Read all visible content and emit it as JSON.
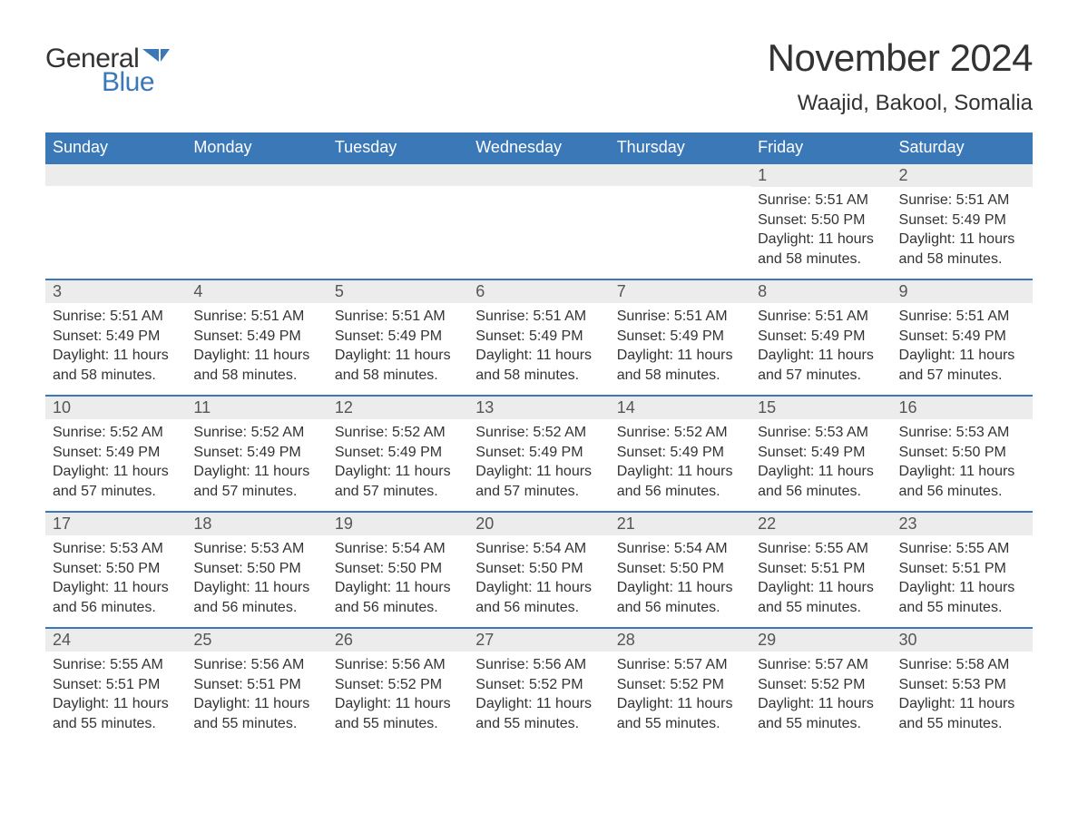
{
  "logo": {
    "text1": "General",
    "text2": "Blue",
    "flag_color": "#3b78b8"
  },
  "title": "November 2024",
  "location": "Waajid, Bakool, Somalia",
  "colors": {
    "header_bg": "#3b78b8",
    "header_fg": "#ffffff",
    "daynum_bg": "#ececec",
    "daynum_border": "#3b78b8",
    "text": "#333333",
    "background": "#ffffff"
  },
  "typography": {
    "title_fontsize": 42,
    "location_fontsize": 24,
    "dayheader_fontsize": 18,
    "daynum_fontsize": 18,
    "body_fontsize": 16
  },
  "day_headers": [
    "Sunday",
    "Monday",
    "Tuesday",
    "Wednesday",
    "Thursday",
    "Friday",
    "Saturday"
  ],
  "weeks": [
    [
      null,
      null,
      null,
      null,
      null,
      {
        "n": "1",
        "sr": "Sunrise: 5:51 AM",
        "ss": "Sunset: 5:50 PM",
        "dl": "Daylight: 11 hours and 58 minutes."
      },
      {
        "n": "2",
        "sr": "Sunrise: 5:51 AM",
        "ss": "Sunset: 5:49 PM",
        "dl": "Daylight: 11 hours and 58 minutes."
      }
    ],
    [
      {
        "n": "3",
        "sr": "Sunrise: 5:51 AM",
        "ss": "Sunset: 5:49 PM",
        "dl": "Daylight: 11 hours and 58 minutes."
      },
      {
        "n": "4",
        "sr": "Sunrise: 5:51 AM",
        "ss": "Sunset: 5:49 PM",
        "dl": "Daylight: 11 hours and 58 minutes."
      },
      {
        "n": "5",
        "sr": "Sunrise: 5:51 AM",
        "ss": "Sunset: 5:49 PM",
        "dl": "Daylight: 11 hours and 58 minutes."
      },
      {
        "n": "6",
        "sr": "Sunrise: 5:51 AM",
        "ss": "Sunset: 5:49 PM",
        "dl": "Daylight: 11 hours and 58 minutes."
      },
      {
        "n": "7",
        "sr": "Sunrise: 5:51 AM",
        "ss": "Sunset: 5:49 PM",
        "dl": "Daylight: 11 hours and 58 minutes."
      },
      {
        "n": "8",
        "sr": "Sunrise: 5:51 AM",
        "ss": "Sunset: 5:49 PM",
        "dl": "Daylight: 11 hours and 57 minutes."
      },
      {
        "n": "9",
        "sr": "Sunrise: 5:51 AM",
        "ss": "Sunset: 5:49 PM",
        "dl": "Daylight: 11 hours and 57 minutes."
      }
    ],
    [
      {
        "n": "10",
        "sr": "Sunrise: 5:52 AM",
        "ss": "Sunset: 5:49 PM",
        "dl": "Daylight: 11 hours and 57 minutes."
      },
      {
        "n": "11",
        "sr": "Sunrise: 5:52 AM",
        "ss": "Sunset: 5:49 PM",
        "dl": "Daylight: 11 hours and 57 minutes."
      },
      {
        "n": "12",
        "sr": "Sunrise: 5:52 AM",
        "ss": "Sunset: 5:49 PM",
        "dl": "Daylight: 11 hours and 57 minutes."
      },
      {
        "n": "13",
        "sr": "Sunrise: 5:52 AM",
        "ss": "Sunset: 5:49 PM",
        "dl": "Daylight: 11 hours and 57 minutes."
      },
      {
        "n": "14",
        "sr": "Sunrise: 5:52 AM",
        "ss": "Sunset: 5:49 PM",
        "dl": "Daylight: 11 hours and 56 minutes."
      },
      {
        "n": "15",
        "sr": "Sunrise: 5:53 AM",
        "ss": "Sunset: 5:49 PM",
        "dl": "Daylight: 11 hours and 56 minutes."
      },
      {
        "n": "16",
        "sr": "Sunrise: 5:53 AM",
        "ss": "Sunset: 5:50 PM",
        "dl": "Daylight: 11 hours and 56 minutes."
      }
    ],
    [
      {
        "n": "17",
        "sr": "Sunrise: 5:53 AM",
        "ss": "Sunset: 5:50 PM",
        "dl": "Daylight: 11 hours and 56 minutes."
      },
      {
        "n": "18",
        "sr": "Sunrise: 5:53 AM",
        "ss": "Sunset: 5:50 PM",
        "dl": "Daylight: 11 hours and 56 minutes."
      },
      {
        "n": "19",
        "sr": "Sunrise: 5:54 AM",
        "ss": "Sunset: 5:50 PM",
        "dl": "Daylight: 11 hours and 56 minutes."
      },
      {
        "n": "20",
        "sr": "Sunrise: 5:54 AM",
        "ss": "Sunset: 5:50 PM",
        "dl": "Daylight: 11 hours and 56 minutes."
      },
      {
        "n": "21",
        "sr": "Sunrise: 5:54 AM",
        "ss": "Sunset: 5:50 PM",
        "dl": "Daylight: 11 hours and 56 minutes."
      },
      {
        "n": "22",
        "sr": "Sunrise: 5:55 AM",
        "ss": "Sunset: 5:51 PM",
        "dl": "Daylight: 11 hours and 55 minutes."
      },
      {
        "n": "23",
        "sr": "Sunrise: 5:55 AM",
        "ss": "Sunset: 5:51 PM",
        "dl": "Daylight: 11 hours and 55 minutes."
      }
    ],
    [
      {
        "n": "24",
        "sr": "Sunrise: 5:55 AM",
        "ss": "Sunset: 5:51 PM",
        "dl": "Daylight: 11 hours and 55 minutes."
      },
      {
        "n": "25",
        "sr": "Sunrise: 5:56 AM",
        "ss": "Sunset: 5:51 PM",
        "dl": "Daylight: 11 hours and 55 minutes."
      },
      {
        "n": "26",
        "sr": "Sunrise: 5:56 AM",
        "ss": "Sunset: 5:52 PM",
        "dl": "Daylight: 11 hours and 55 minutes."
      },
      {
        "n": "27",
        "sr": "Sunrise: 5:56 AM",
        "ss": "Sunset: 5:52 PM",
        "dl": "Daylight: 11 hours and 55 minutes."
      },
      {
        "n": "28",
        "sr": "Sunrise: 5:57 AM",
        "ss": "Sunset: 5:52 PM",
        "dl": "Daylight: 11 hours and 55 minutes."
      },
      {
        "n": "29",
        "sr": "Sunrise: 5:57 AM",
        "ss": "Sunset: 5:52 PM",
        "dl": "Daylight: 11 hours and 55 minutes."
      },
      {
        "n": "30",
        "sr": "Sunrise: 5:58 AM",
        "ss": "Sunset: 5:53 PM",
        "dl": "Daylight: 11 hours and 55 minutes."
      }
    ]
  ]
}
